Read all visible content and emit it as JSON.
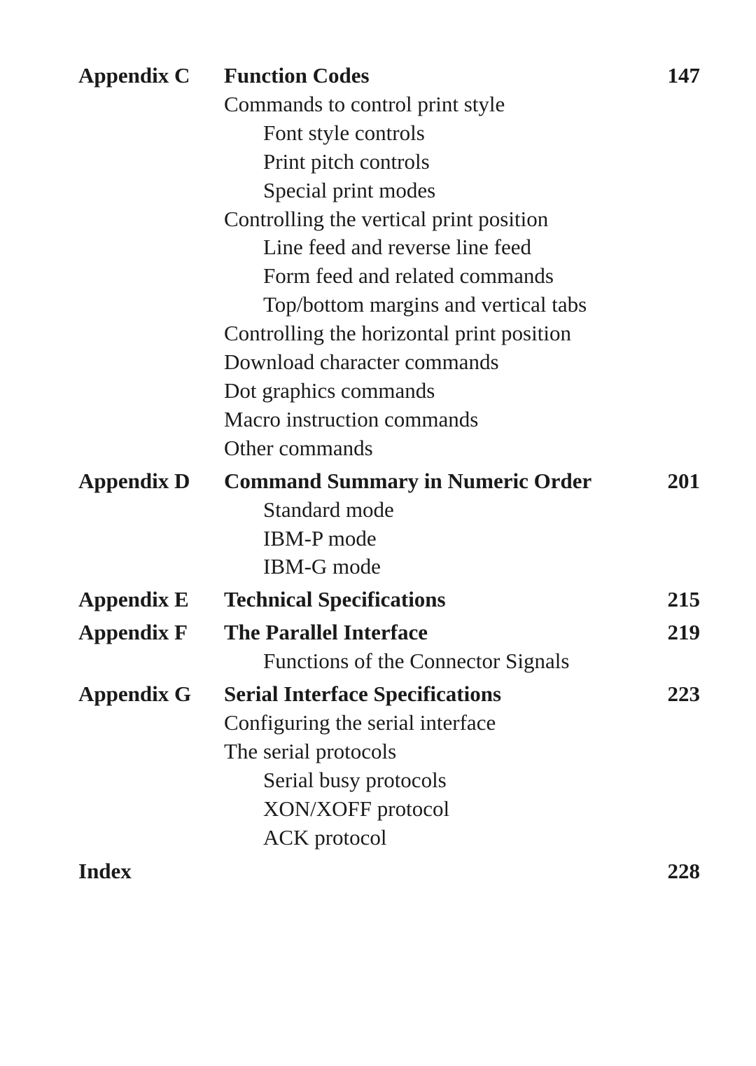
{
  "entries": [
    {
      "label": "Appendix C",
      "title": "Function Codes",
      "page": "147",
      "lines": [
        {
          "text": "Commands to control print style",
          "indent": 1
        },
        {
          "text": "Font style controls",
          "indent": 2
        },
        {
          "text": "Print pitch controls",
          "indent": 2
        },
        {
          "text": "Special print modes",
          "indent": 2
        },
        {
          "text": "Controlling the vertical print position",
          "indent": 1
        },
        {
          "text": "Line feed and reverse line feed",
          "indent": 2
        },
        {
          "text": "Form feed and related commands",
          "indent": 2
        },
        {
          "text": "Top/bottom margins and vertical tabs",
          "indent": 2
        },
        {
          "text": "Controlling the horizontal print position",
          "indent": 1
        },
        {
          "text": "Download character commands",
          "indent": 1
        },
        {
          "text": "Dot graphics commands",
          "indent": 1
        },
        {
          "text": "Macro instruction commands",
          "indent": 1
        },
        {
          "text": "Other commands",
          "indent": 1
        }
      ]
    },
    {
      "label": "Appendix D",
      "title": "Command Summary in Numeric Order",
      "page": "201",
      "lines": [
        {
          "text": "Standard mode",
          "indent": 2
        },
        {
          "text": "IBM-P mode",
          "indent": 2
        },
        {
          "text": "IBM-G mode",
          "indent": 2
        }
      ]
    },
    {
      "label": "Appendix E",
      "title": "Technical Specifications",
      "page": "215",
      "lines": []
    },
    {
      "label": "Appendix F",
      "title": "The Parallel Interface",
      "page": "219",
      "lines": [
        {
          "text": "Functions of the Connector Signals",
          "indent": 2
        }
      ]
    },
    {
      "label": "Appendix G",
      "title": "Serial Interface Specifications",
      "page": "223",
      "lines": [
        {
          "text": "Configuring the serial interface",
          "indent": 1
        },
        {
          "text": "The serial protocols",
          "indent": 1
        },
        {
          "text": "Serial busy protocols",
          "indent": 2
        },
        {
          "text": "XON/XOFF protocol",
          "indent": 2
        },
        {
          "text": "ACK protocol",
          "indent": 2
        }
      ]
    }
  ],
  "index": {
    "label": "Index",
    "page": "228"
  }
}
